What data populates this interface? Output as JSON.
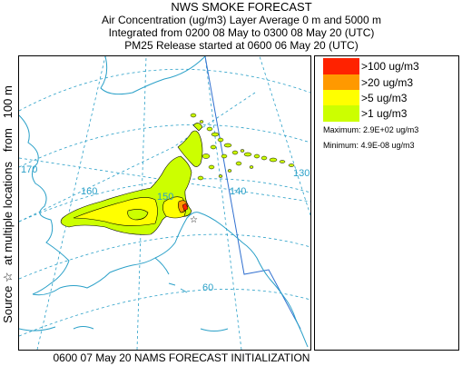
{
  "title": {
    "main": "NWS SMOKE FORECAST",
    "line1": "Air Concentration (ug/m3) Layer Average    0 m and  5000 m",
    "line2": "Integrated from 0200 08 May to 0300 08 May 20 (UTC)",
    "line3": "PM25 Release started at 0600 06 May 20 (UTC)"
  },
  "side_label": "Source ☆  at multiple locations   from   100 m",
  "legend": {
    "items": [
      {
        "label": ">100 ug/m3",
        "color": "#ff2200"
      },
      {
        "label": ">20 ug/m3",
        "color": "#ff9900"
      },
      {
        "label": ">5 ug/m3",
        "color": "#ffff00"
      },
      {
        "label": ">1 ug/m3",
        "color": "#ccff00"
      }
    ],
    "maximum": "Maximum: 2.9E+02 ug/m3",
    "minimum": "Minimum: 4.9E-08 ug/m3"
  },
  "map": {
    "grid_labels": {
      "lon_170": "170",
      "lon_160": "160",
      "lon_150": "150",
      "lon_140": "140",
      "lon_130": "130",
      "lat_60": "60"
    },
    "colors": {
      "coast": "#2aa0c8",
      "grid": "#2aa0c8",
      "border": "#2f6fd0",
      "contour": "#000000"
    }
  },
  "footer": "0600 07 May 20 NAMS FORECAST INITIALIZATION"
}
